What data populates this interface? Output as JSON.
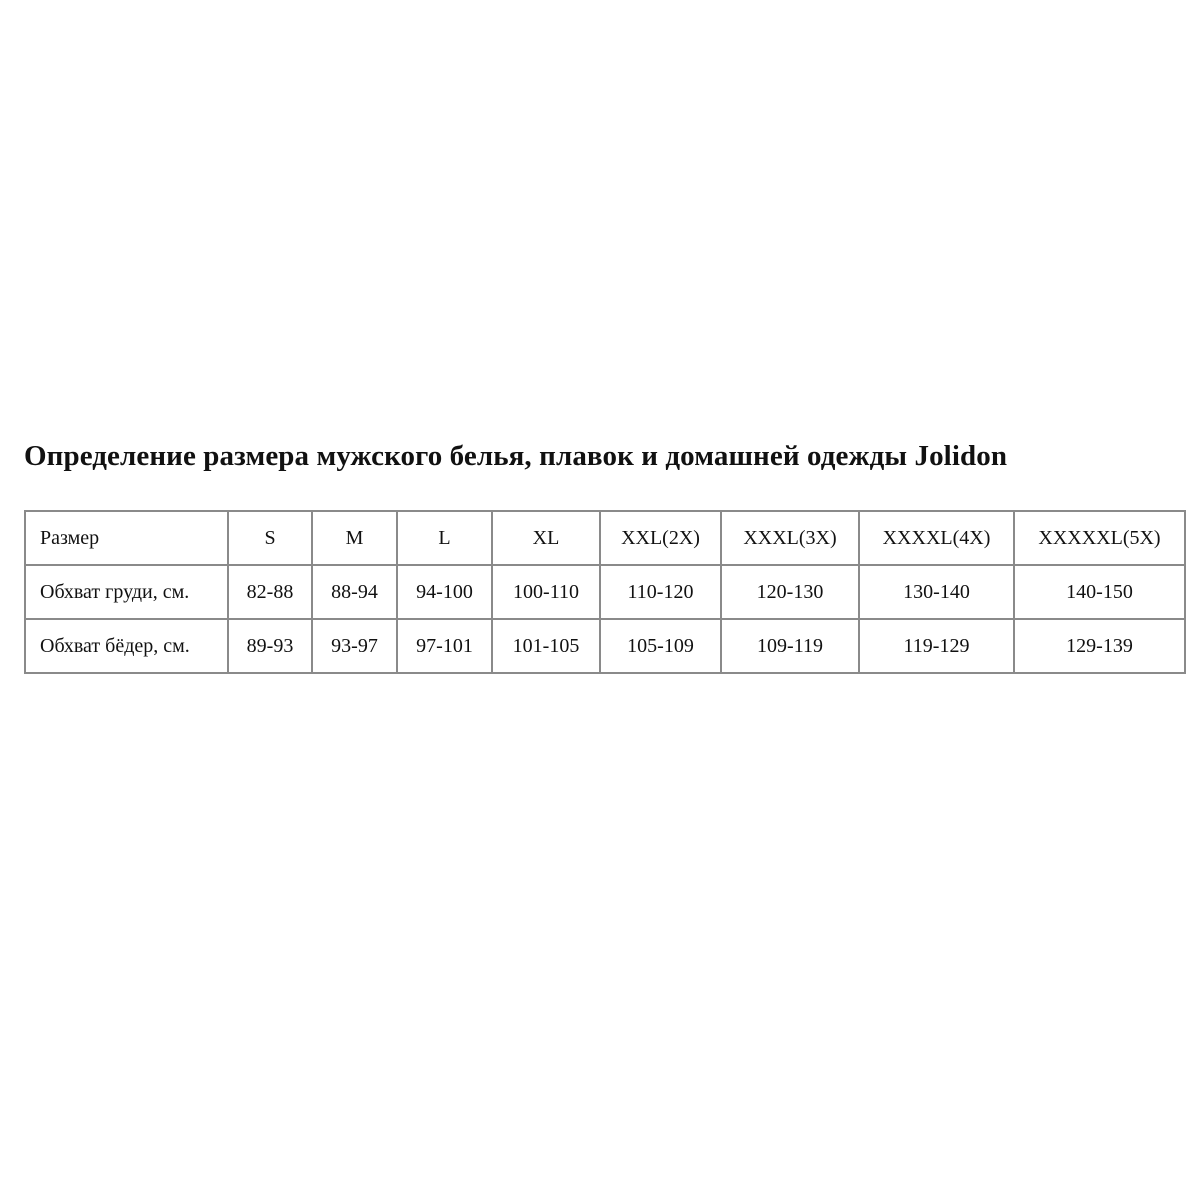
{
  "title": "Определение размера мужского белья, плавок и домашней одежды Jolidon",
  "table": {
    "rows": [
      {
        "label": "Размер",
        "cells": [
          "S",
          "M",
          "L",
          "XL",
          "XXL(2X)",
          "XXXL(3X)",
          "XXXXL(4X)",
          "XXXXXL(5X)"
        ]
      },
      {
        "label": "Обхват груди, см.",
        "cells": [
          "82-88",
          "88-94",
          "94-100",
          "100-110",
          "110-120",
          "120-130",
          "130-140",
          "140-150"
        ]
      },
      {
        "label": "Обхват бёдер, см.",
        "cells": [
          "89-93",
          "93-97",
          "97-101",
          "101-105",
          "105-109",
          "109-119",
          "119-129",
          "129-139"
        ]
      }
    ]
  }
}
